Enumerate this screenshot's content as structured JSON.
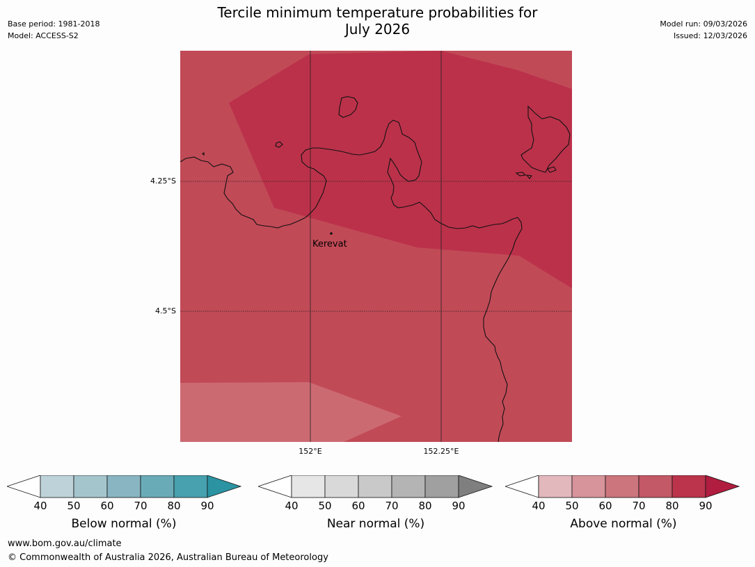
{
  "title_line1": "Tercile minimum temperature probabilities for",
  "title_line2": "July 2026",
  "meta_left": {
    "base_period": "Base period: 1981-2018",
    "model": "Model: ACCESS-S2"
  },
  "meta_right": {
    "model_run": "Model run: 09/03/2026",
    "issued": "Issued: 12/03/2026"
  },
  "map": {
    "lat_labels": [
      "4.25°S",
      "4.5°S"
    ],
    "lon_labels": [
      "152°E",
      "152.25°E"
    ],
    "places": [
      {
        "name": "Kerevat"
      }
    ],
    "colors": {
      "above_60_70": "#cc6a72",
      "above_70_80": "#c14a57",
      "above_80_90": "#bb314a",
      "coast": "#111111"
    }
  },
  "colorbars": [
    {
      "id": "below",
      "title": "Below normal (%)",
      "ticks": [
        "40",
        "50",
        "60",
        "70",
        "80",
        "90"
      ],
      "colors": [
        "#ffffff",
        "#bed3d9",
        "#a5c5cc",
        "#88b5c1",
        "#6aabb8",
        "#47a1ae",
        "#2b93a2"
      ]
    },
    {
      "id": "near",
      "title": "Near normal (%)",
      "ticks": [
        "40",
        "50",
        "60",
        "70",
        "80",
        "90"
      ],
      "colors": [
        "#ffffff",
        "#e6e6e6",
        "#d9d9d9",
        "#c9c9c9",
        "#b4b4b4",
        "#a0a0a0",
        "#7f7f7f"
      ]
    },
    {
      "id": "above",
      "title": "Above normal (%)",
      "ticks": [
        "40",
        "50",
        "60",
        "70",
        "80",
        "90"
      ],
      "colors": [
        "#ffffff",
        "#e3b8bd",
        "#d7949b",
        "#cc757d",
        "#c35866",
        "#bb344b",
        "#b01d3e"
      ]
    }
  ],
  "footer": {
    "url": "www.bom.gov.au/climate",
    "copyright": "© Commonwealth of Australia 2026, Australian Bureau of Meteorology"
  }
}
